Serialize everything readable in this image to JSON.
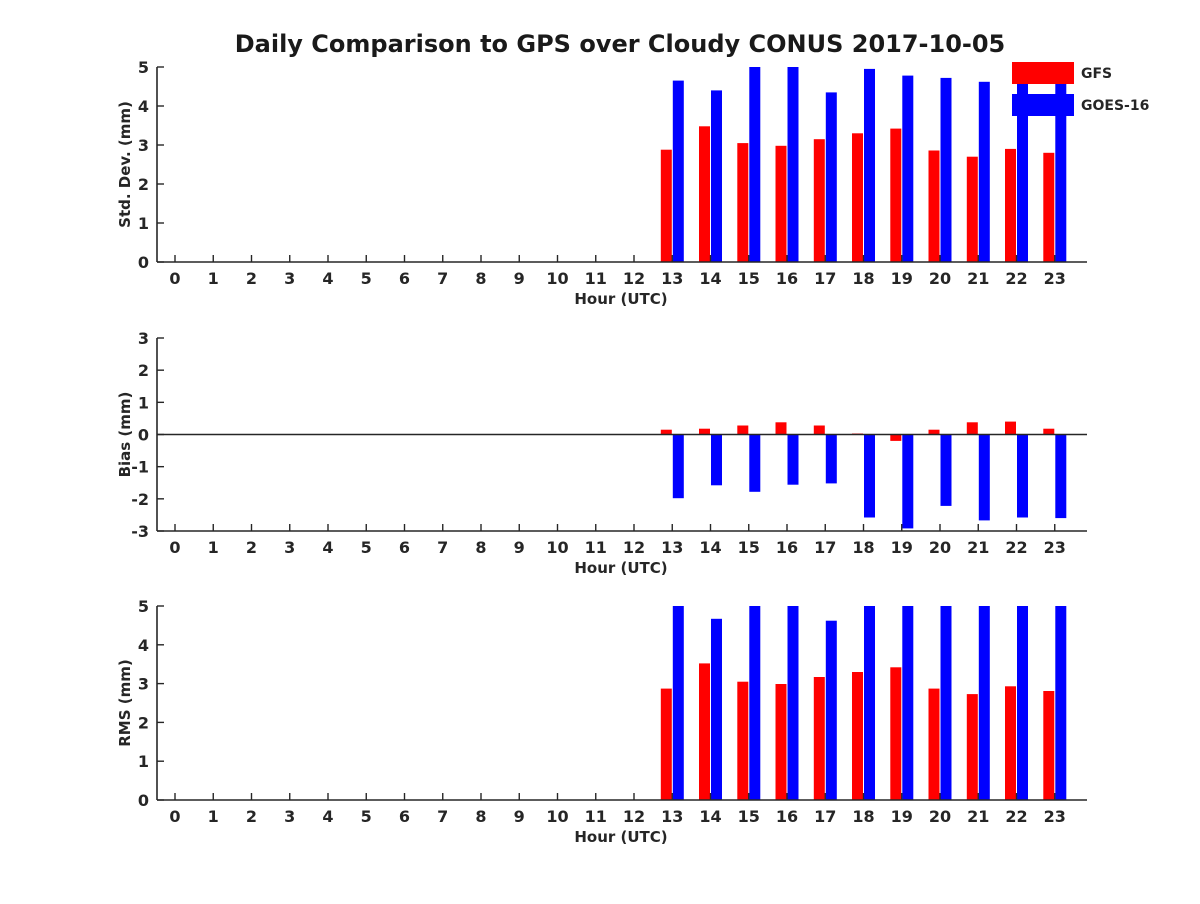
{
  "title": "Daily Comparison to GPS over Cloudy CONUS 2017-10-05",
  "colors": {
    "GFS": "#ff0000",
    "GOES-16": "#0000ff"
  },
  "legend": {
    "placement": "top-right",
    "entries": [
      "GFS",
      "GOES-16"
    ]
  },
  "chart_data": [
    {
      "type": "bar",
      "name": "stddev",
      "xlabel": "Hour (UTC)",
      "ylabel": "Std. Dev. (mm)",
      "categories": [
        "0",
        "1",
        "2",
        "3",
        "4",
        "5",
        "6",
        "7",
        "8",
        "9",
        "10",
        "11",
        "12",
        "13",
        "14",
        "15",
        "16",
        "17",
        "18",
        "19",
        "20",
        "21",
        "22",
        "23"
      ],
      "ylim": [
        0,
        5
      ],
      "yticks": [
        "0",
        "1",
        "2",
        "3",
        "4",
        "5"
      ],
      "grid": false,
      "series": [
        {
          "name": "GFS",
          "color": "#ff0000",
          "values": [
            null,
            null,
            null,
            null,
            null,
            null,
            null,
            null,
            null,
            null,
            null,
            null,
            null,
            2.88,
            3.48,
            3.05,
            2.98,
            3.15,
            3.3,
            3.42,
            2.86,
            2.7,
            2.9,
            2.8
          ]
        },
        {
          "name": "GOES-16",
          "color": "#0000ff",
          "values": [
            null,
            null,
            null,
            null,
            null,
            null,
            null,
            null,
            null,
            null,
            null,
            null,
            null,
            4.65,
            4.4,
            5.0,
            5.0,
            4.35,
            4.95,
            4.78,
            4.72,
            4.62,
            4.62,
            4.6
          ]
        }
      ]
    },
    {
      "type": "bar",
      "name": "bias",
      "xlabel": "Hour (UTC)",
      "ylabel": "Bias (mm)",
      "categories": [
        "0",
        "1",
        "2",
        "3",
        "4",
        "5",
        "6",
        "7",
        "8",
        "9",
        "10",
        "11",
        "12",
        "13",
        "14",
        "15",
        "16",
        "17",
        "18",
        "19",
        "20",
        "21",
        "22",
        "23"
      ],
      "ylim": [
        -3,
        3
      ],
      "yticks": [
        "-3",
        "-2",
        "-1",
        "0",
        "1",
        "2",
        "3"
      ],
      "grid": false,
      "series": [
        {
          "name": "GFS",
          "color": "#ff0000",
          "values": [
            null,
            null,
            null,
            null,
            null,
            null,
            null,
            null,
            null,
            null,
            null,
            null,
            null,
            0.15,
            0.18,
            0.28,
            0.38,
            0.28,
            0.03,
            -0.2,
            0.15,
            0.38,
            0.4,
            0.18
          ]
        },
        {
          "name": "GOES-16",
          "color": "#0000ff",
          "values": [
            null,
            null,
            null,
            null,
            null,
            null,
            null,
            null,
            null,
            null,
            null,
            null,
            null,
            -1.98,
            -1.58,
            -1.78,
            -1.56,
            -1.52,
            -2.58,
            -2.92,
            -2.22,
            -2.67,
            -2.58,
            -2.6
          ]
        }
      ]
    },
    {
      "type": "bar",
      "name": "rms",
      "xlabel": "Hour (UTC)",
      "ylabel": "RMS (mm)",
      "categories": [
        "0",
        "1",
        "2",
        "3",
        "4",
        "5",
        "6",
        "7",
        "8",
        "9",
        "10",
        "11",
        "12",
        "13",
        "14",
        "15",
        "16",
        "17",
        "18",
        "19",
        "20",
        "21",
        "22",
        "23"
      ],
      "ylim": [
        0,
        5
      ],
      "yticks": [
        "0",
        "1",
        "2",
        "3",
        "4",
        "5"
      ],
      "grid": false,
      "series": [
        {
          "name": "GFS",
          "color": "#ff0000",
          "values": [
            null,
            null,
            null,
            null,
            null,
            null,
            null,
            null,
            null,
            null,
            null,
            null,
            null,
            2.87,
            3.52,
            3.05,
            2.99,
            3.17,
            3.3,
            3.42,
            2.87,
            2.73,
            2.93,
            2.81
          ]
        },
        {
          "name": "GOES-16",
          "color": "#0000ff",
          "values": [
            null,
            null,
            null,
            null,
            null,
            null,
            null,
            null,
            null,
            null,
            null,
            null,
            null,
            5.0,
            4.67,
            5.0,
            5.0,
            4.62,
            5.0,
            5.0,
            5.0,
            5.0,
            5.0,
            5.0
          ]
        }
      ]
    }
  ]
}
